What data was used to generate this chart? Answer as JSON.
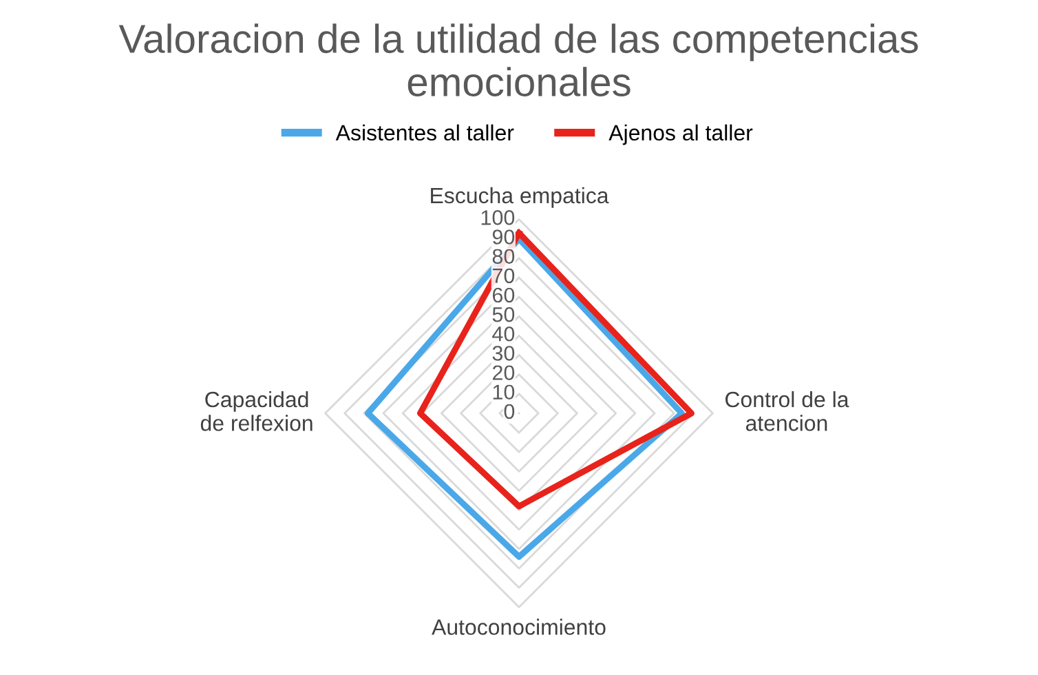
{
  "chart_data": {
    "type": "radar",
    "title": "Valoracion de la utilidad de las competencias emocionales",
    "categories": [
      "Escucha empatica",
      "Control de la atencion",
      "Autoconocimiento",
      "Capacidad de relfexion"
    ],
    "series": [
      {
        "name": "Asistentes al taller",
        "color": "#4aa8e8",
        "values": [
          90,
          84,
          74,
          78
        ]
      },
      {
        "name": "Ajenos al taller",
        "color": "#e8231b",
        "values": [
          93,
          89,
          48,
          51
        ]
      }
    ],
    "ylim": [
      0,
      100
    ],
    "yticks": [
      0,
      10,
      20,
      30,
      40,
      50,
      60,
      70,
      80,
      90,
      100
    ],
    "grid": true,
    "legend": "top"
  }
}
